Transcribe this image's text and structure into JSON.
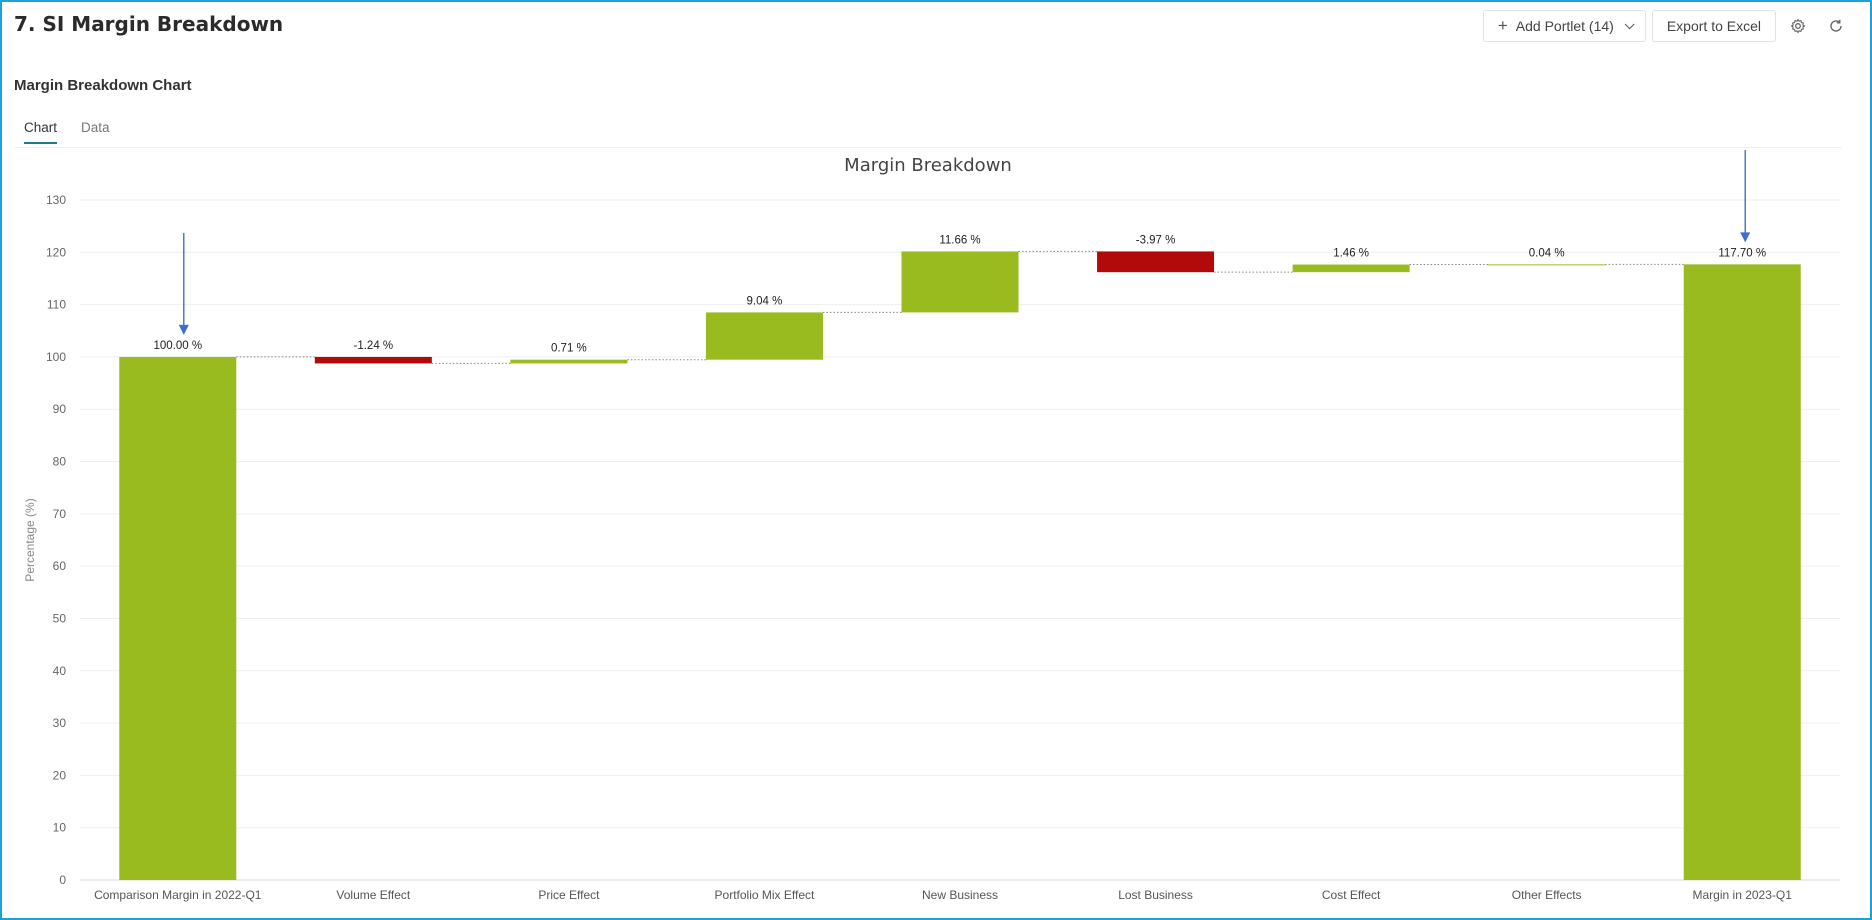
{
  "header": {
    "title": "7. SI Margin Breakdown",
    "add_portlet_label": "Add Portlet (14)",
    "export_label": "Export to Excel",
    "settings_icon": "gear-icon",
    "refresh_icon": "refresh-icon"
  },
  "section": {
    "title": "Margin Breakdown Chart"
  },
  "tabs": [
    {
      "label": "Chart",
      "active": true
    },
    {
      "label": "Data",
      "active": false
    }
  ],
  "colors": {
    "frame": "#1aa3d9",
    "positive": "#99bb1f",
    "negative": "#b20a0a",
    "arrow": "#3f6fce",
    "tab_accent": "#1f7a8c"
  },
  "chart_data": {
    "type": "bar",
    "subtype": "waterfall",
    "title": "Margin Breakdown",
    "xlabel": "",
    "ylabel": "Percentage (%)",
    "ylim": [
      0,
      130
    ],
    "yticks": [
      0,
      10,
      20,
      30,
      40,
      50,
      60,
      70,
      80,
      90,
      100,
      110,
      120,
      130
    ],
    "grid": true,
    "categories": [
      "Comparison Margin in 2022-Q1",
      "Volume Effect",
      "Price Effect",
      "Portfolio Mix Effect",
      "New Business",
      "Lost Business",
      "Cost Effect",
      "Other Effects",
      "Margin in 2023-Q1"
    ],
    "values": [
      100.0,
      -1.24,
      0.71,
      9.04,
      11.66,
      -3.97,
      1.46,
      0.04,
      117.7
    ],
    "is_total": [
      true,
      false,
      false,
      false,
      false,
      false,
      false,
      false,
      true
    ],
    "labels": [
      "100.00 %",
      "-1.24 %",
      "0.71 %",
      "9.04 %",
      "11.66 %",
      "-3.97 %",
      "1.46 %",
      "0.04 %",
      "117.70 %"
    ],
    "annotations": [
      {
        "type": "arrow",
        "category": "Comparison Margin in 2022-Q1"
      },
      {
        "type": "arrow",
        "category": "Margin in 2023-Q1"
      }
    ]
  }
}
